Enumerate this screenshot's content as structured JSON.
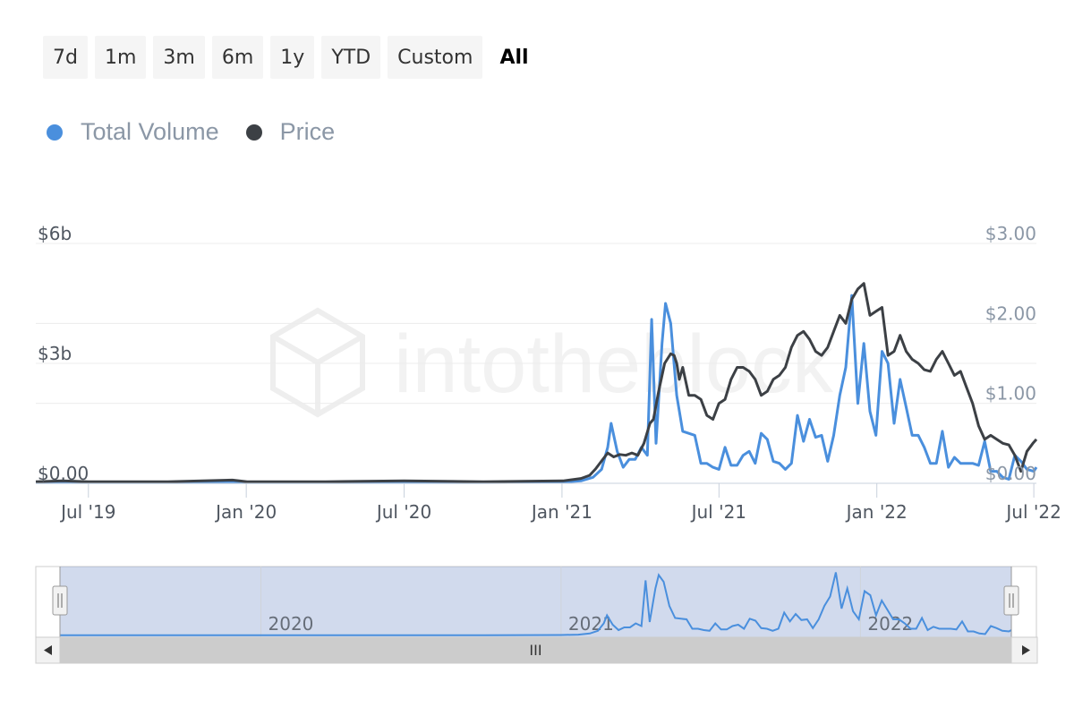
{
  "range_buttons": [
    {
      "label": "7d",
      "active": false
    },
    {
      "label": "1m",
      "active": false
    },
    {
      "label": "3m",
      "active": false
    },
    {
      "label": "6m",
      "active": false
    },
    {
      "label": "1y",
      "active": false
    },
    {
      "label": "YTD",
      "active": false
    },
    {
      "label": "Custom",
      "active": false
    },
    {
      "label": "All",
      "active": true
    }
  ],
  "watermark": "intotheblock",
  "chart_data": {
    "type": "line",
    "legend_position": "top-left",
    "grid": true,
    "series": [
      {
        "name": "Total Volume",
        "color": "#4a8fdd",
        "axis": "left",
        "unit": "billion USD",
        "points": [
          [
            "2019-05-01",
            0.02
          ],
          [
            "2019-07-01",
            0.02
          ],
          [
            "2019-10-01",
            0.02
          ],
          [
            "2020-01-01",
            0.02
          ],
          [
            "2020-04-01",
            0.02
          ],
          [
            "2020-07-01",
            0.02
          ],
          [
            "2020-10-01",
            0.02
          ],
          [
            "2021-01-01",
            0.03
          ],
          [
            "2021-01-22",
            0.06
          ],
          [
            "2021-02-05",
            0.15
          ],
          [
            "2021-02-15",
            0.35
          ],
          [
            "2021-02-22",
            0.9
          ],
          [
            "2021-02-26",
            1.5
          ],
          [
            "2021-03-05",
            0.8
          ],
          [
            "2021-03-12",
            0.4
          ],
          [
            "2021-03-19",
            0.6
          ],
          [
            "2021-03-26",
            0.6
          ],
          [
            "2021-04-02",
            0.9
          ],
          [
            "2021-04-09",
            0.7
          ],
          [
            "2021-04-14",
            4.1
          ],
          [
            "2021-04-19",
            1.0
          ],
          [
            "2021-04-26",
            3.5
          ],
          [
            "2021-04-30",
            4.5
          ],
          [
            "2021-05-06",
            4.0
          ],
          [
            "2021-05-13",
            2.2
          ],
          [
            "2021-05-20",
            1.3
          ],
          [
            "2021-05-27",
            1.25
          ],
          [
            "2021-06-03",
            1.2
          ],
          [
            "2021-06-10",
            0.5
          ],
          [
            "2021-06-17",
            0.5
          ],
          [
            "2021-06-24",
            0.4
          ],
          [
            "2021-07-01",
            0.35
          ],
          [
            "2021-07-08",
            0.9
          ],
          [
            "2021-07-15",
            0.45
          ],
          [
            "2021-07-22",
            0.45
          ],
          [
            "2021-07-29",
            0.7
          ],
          [
            "2021-08-05",
            0.8
          ],
          [
            "2021-08-12",
            0.5
          ],
          [
            "2021-08-19",
            1.25
          ],
          [
            "2021-08-26",
            1.1
          ],
          [
            "2021-09-02",
            0.55
          ],
          [
            "2021-09-09",
            0.5
          ],
          [
            "2021-09-16",
            0.35
          ],
          [
            "2021-09-23",
            0.5
          ],
          [
            "2021-09-30",
            1.7
          ],
          [
            "2021-10-07",
            1.05
          ],
          [
            "2021-10-14",
            1.6
          ],
          [
            "2021-10-21",
            1.15
          ],
          [
            "2021-10-28",
            1.2
          ],
          [
            "2021-11-04",
            0.55
          ],
          [
            "2021-11-11",
            1.2
          ],
          [
            "2021-11-18",
            2.2
          ],
          [
            "2021-11-25",
            2.9
          ],
          [
            "2021-12-02",
            4.7
          ],
          [
            "2021-12-09",
            2.0
          ],
          [
            "2021-12-16",
            3.5
          ],
          [
            "2021-12-23",
            1.8
          ],
          [
            "2021-12-30",
            1.2
          ],
          [
            "2022-01-06",
            3.3
          ],
          [
            "2022-01-13",
            3.0
          ],
          [
            "2022-01-20",
            1.5
          ],
          [
            "2022-01-27",
            2.6
          ],
          [
            "2022-02-03",
            1.9
          ],
          [
            "2022-02-10",
            1.2
          ],
          [
            "2022-02-17",
            1.2
          ],
          [
            "2022-02-24",
            0.9
          ],
          [
            "2022-03-03",
            0.5
          ],
          [
            "2022-03-10",
            0.5
          ],
          [
            "2022-03-17",
            1.3
          ],
          [
            "2022-03-24",
            0.4
          ],
          [
            "2022-03-31",
            0.65
          ],
          [
            "2022-04-07",
            0.5
          ],
          [
            "2022-04-14",
            0.5
          ],
          [
            "2022-04-21",
            0.5
          ],
          [
            "2022-04-28",
            0.45
          ],
          [
            "2022-05-05",
            1.05
          ],
          [
            "2022-05-12",
            0.3
          ],
          [
            "2022-05-19",
            0.3
          ],
          [
            "2022-05-26",
            0.15
          ],
          [
            "2022-06-02",
            0.1
          ],
          [
            "2022-06-09",
            0.7
          ],
          [
            "2022-06-16",
            0.55
          ],
          [
            "2022-06-23",
            0.35
          ],
          [
            "2022-07-01",
            0.3
          ],
          [
            "2022-07-04",
            0.4
          ]
        ]
      },
      {
        "name": "Price",
        "color": "#3c4045",
        "axis": "right",
        "unit": "USD",
        "points": [
          [
            "2019-05-01",
            0.02
          ],
          [
            "2019-06-01",
            0.03
          ],
          [
            "2019-07-01",
            0.02
          ],
          [
            "2019-10-01",
            0.02
          ],
          [
            "2019-12-15",
            0.04
          ],
          [
            "2020-01-01",
            0.02
          ],
          [
            "2020-04-01",
            0.02
          ],
          [
            "2020-07-01",
            0.03
          ],
          [
            "2020-10-01",
            0.02
          ],
          [
            "2021-01-01",
            0.03
          ],
          [
            "2021-01-22",
            0.06
          ],
          [
            "2021-02-01",
            0.1
          ],
          [
            "2021-02-08",
            0.18
          ],
          [
            "2021-02-15",
            0.28
          ],
          [
            "2021-02-22",
            0.38
          ],
          [
            "2021-03-01",
            0.33
          ],
          [
            "2021-03-08",
            0.36
          ],
          [
            "2021-03-15",
            0.35
          ],
          [
            "2021-03-22",
            0.38
          ],
          [
            "2021-03-29",
            0.35
          ],
          [
            "2021-04-05",
            0.5
          ],
          [
            "2021-04-12",
            0.75
          ],
          [
            "2021-04-16",
            0.8
          ],
          [
            "2021-04-22",
            1.15
          ],
          [
            "2021-04-29",
            1.5
          ],
          [
            "2021-05-06",
            1.62
          ],
          [
            "2021-05-10",
            1.6
          ],
          [
            "2021-05-13",
            1.5
          ],
          [
            "2021-05-16",
            1.3
          ],
          [
            "2021-05-20",
            1.45
          ],
          [
            "2021-05-27",
            1.1
          ],
          [
            "2021-06-03",
            1.1
          ],
          [
            "2021-06-10",
            1.05
          ],
          [
            "2021-06-17",
            0.85
          ],
          [
            "2021-06-24",
            0.8
          ],
          [
            "2021-07-01",
            1.0
          ],
          [
            "2021-07-08",
            1.05
          ],
          [
            "2021-07-15",
            1.3
          ],
          [
            "2021-07-22",
            1.45
          ],
          [
            "2021-07-29",
            1.45
          ],
          [
            "2021-08-05",
            1.4
          ],
          [
            "2021-08-12",
            1.3
          ],
          [
            "2021-08-19",
            1.1
          ],
          [
            "2021-08-26",
            1.15
          ],
          [
            "2021-09-02",
            1.3
          ],
          [
            "2021-09-09",
            1.35
          ],
          [
            "2021-09-16",
            1.45
          ],
          [
            "2021-09-23",
            1.7
          ],
          [
            "2021-09-30",
            1.85
          ],
          [
            "2021-10-07",
            1.9
          ],
          [
            "2021-10-14",
            1.8
          ],
          [
            "2021-10-21",
            1.65
          ],
          [
            "2021-10-28",
            1.6
          ],
          [
            "2021-11-04",
            1.7
          ],
          [
            "2021-11-11",
            1.9
          ],
          [
            "2021-11-18",
            2.1
          ],
          [
            "2021-11-25",
            2.0
          ],
          [
            "2021-12-02",
            2.3
          ],
          [
            "2021-12-09",
            2.43
          ],
          [
            "2021-12-16",
            2.5
          ],
          [
            "2021-12-23",
            2.1
          ],
          [
            "2021-12-30",
            2.15
          ],
          [
            "2022-01-06",
            2.2
          ],
          [
            "2022-01-13",
            1.6
          ],
          [
            "2022-01-20",
            1.65
          ],
          [
            "2022-01-27",
            1.85
          ],
          [
            "2022-02-03",
            1.65
          ],
          [
            "2022-02-10",
            1.55
          ],
          [
            "2022-02-17",
            1.5
          ],
          [
            "2022-02-24",
            1.42
          ],
          [
            "2022-03-03",
            1.4
          ],
          [
            "2022-03-10",
            1.55
          ],
          [
            "2022-03-17",
            1.65
          ],
          [
            "2022-03-24",
            1.5
          ],
          [
            "2022-03-31",
            1.35
          ],
          [
            "2022-04-07",
            1.4
          ],
          [
            "2022-04-14",
            1.2
          ],
          [
            "2022-04-21",
            1.0
          ],
          [
            "2022-04-28",
            0.72
          ],
          [
            "2022-05-05",
            0.55
          ],
          [
            "2022-05-12",
            0.6
          ],
          [
            "2022-05-19",
            0.55
          ],
          [
            "2022-05-26",
            0.5
          ],
          [
            "2022-06-02",
            0.48
          ],
          [
            "2022-06-09",
            0.35
          ],
          [
            "2022-06-16",
            0.15
          ],
          [
            "2022-06-23",
            0.4
          ],
          [
            "2022-06-30",
            0.5
          ],
          [
            "2022-07-04",
            0.55
          ]
        ]
      }
    ],
    "x_range": [
      "2019-05-01",
      "2022-07-04"
    ],
    "x_ticks": [
      "2019-07-01",
      "2019-12-31",
      "2020-07-01",
      "2020-12-31",
      "2021-07-01",
      "2021-12-31",
      "2022-07-01"
    ],
    "x_tick_labels": [
      "Jul '19",
      "Jan '20",
      "Jul '20",
      "Jan '21",
      "Jul '21",
      "Jan '22",
      "Jul '22"
    ],
    "y_left": {
      "range": [
        0,
        6
      ],
      "ticks": [
        0,
        3,
        6
      ],
      "tick_labels": [
        "$0.00",
        "$3b",
        "$6b"
      ]
    },
    "y_right": {
      "range": [
        0,
        3
      ],
      "ticks": [
        0,
        1,
        2,
        3
      ],
      "tick_labels": [
        "$0.00",
        "$1.00",
        "$2.00",
        "$3.00"
      ]
    },
    "navigator": {
      "year_labels": [
        "2020",
        "2021",
        "2022"
      ],
      "year_dates": [
        "2020-01-01",
        "2021-01-01",
        "2022-01-01"
      ],
      "scrollbar_grip": "III"
    }
  }
}
